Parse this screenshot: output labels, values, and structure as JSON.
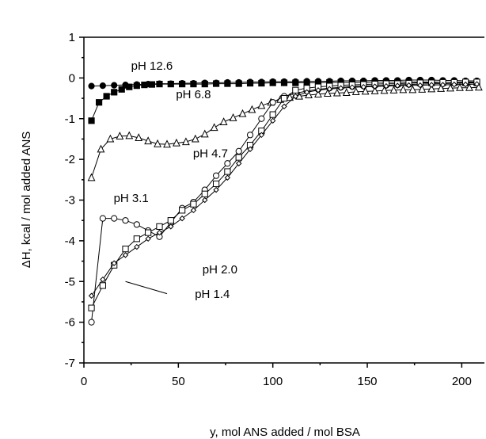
{
  "chart_data": {
    "type": "scatter",
    "xlabel": "y, mol ANS added / mol BSA",
    "ylabel": "ΔH, kcal / mol added ANS",
    "xlim": [
      0,
      212
    ],
    "ylim": [
      -7,
      1
    ],
    "xticks": [
      0,
      50,
      100,
      150,
      200
    ],
    "yticks": [
      1,
      0,
      -1,
      -2,
      -3,
      -4,
      -5,
      -6,
      -7
    ],
    "grid": false,
    "legend": "none",
    "series": [
      {
        "name": "pH 12.6",
        "marker": "filled-circle",
        "x": [
          4,
          10,
          16,
          22,
          28,
          34,
          40,
          46,
          52,
          58,
          64,
          70,
          76,
          82,
          88,
          94,
          100,
          106,
          112,
          118,
          124,
          130,
          136,
          142,
          148,
          154,
          160,
          166,
          172,
          178,
          184,
          190,
          196,
          202,
          208
        ],
        "y": [
          -0.2,
          -0.19,
          -0.18,
          -0.17,
          -0.16,
          -0.15,
          -0.14,
          -0.14,
          -0.13,
          -0.13,
          -0.12,
          -0.12,
          -0.11,
          -0.11,
          -0.1,
          -0.1,
          -0.09,
          -0.09,
          -0.09,
          -0.08,
          -0.08,
          -0.08,
          -0.07,
          -0.07,
          -0.07,
          -0.06,
          -0.06,
          -0.06,
          -0.05,
          -0.05,
          -0.05,
          -0.06,
          -0.06,
          -0.07,
          -0.07
        ]
      },
      {
        "name": "pH 6.8",
        "marker": "filled-square",
        "x": [
          4,
          8,
          12,
          16,
          20,
          24,
          28,
          32,
          36,
          40,
          46,
          52,
          58,
          64,
          70,
          76,
          82,
          88,
          94,
          100,
          106,
          112,
          118,
          124,
          130,
          136,
          142,
          148,
          154,
          160,
          166,
          172,
          178,
          184,
          190,
          196,
          202,
          208
        ],
        "y": [
          -1.05,
          -0.6,
          -0.45,
          -0.35,
          -0.28,
          -0.22,
          -0.19,
          -0.17,
          -0.16,
          -0.15,
          -0.15,
          -0.15,
          -0.15,
          -0.15,
          -0.14,
          -0.14,
          -0.14,
          -0.13,
          -0.13,
          -0.12,
          -0.12,
          -0.12,
          -0.12,
          -0.12,
          -0.11,
          -0.11,
          -0.11,
          -0.11,
          -0.1,
          -0.1,
          -0.1,
          -0.1,
          -0.1,
          -0.1,
          -0.11,
          -0.11,
          -0.12,
          -0.12
        ]
      },
      {
        "name": "pH 4.7",
        "marker": "open-triangle",
        "x": [
          4,
          9,
          14,
          19,
          24,
          29,
          34,
          39,
          44,
          49,
          54,
          59,
          64,
          69,
          74,
          79,
          84,
          89,
          94,
          99,
          104,
          109,
          114,
          119,
          124,
          129,
          134,
          139,
          144,
          149,
          154,
          159,
          164,
          169,
          174,
          179,
          184,
          189,
          194,
          199,
          204,
          209
        ],
        "y": [
          -2.45,
          -1.75,
          -1.5,
          -1.43,
          -1.42,
          -1.47,
          -1.55,
          -1.62,
          -1.63,
          -1.6,
          -1.57,
          -1.5,
          -1.38,
          -1.22,
          -1.08,
          -0.98,
          -0.88,
          -0.78,
          -0.68,
          -0.6,
          -0.53,
          -0.48,
          -0.45,
          -0.42,
          -0.4,
          -0.38,
          -0.37,
          -0.36,
          -0.34,
          -0.33,
          -0.32,
          -0.31,
          -0.3,
          -0.29,
          -0.29,
          -0.28,
          -0.27,
          -0.26,
          -0.25,
          -0.24,
          -0.24,
          -0.23
        ]
      },
      {
        "name": "pH 3.1",
        "marker": "open-circle",
        "x": [
          4,
          10,
          16,
          22,
          28,
          34,
          40,
          46,
          52,
          58,
          64,
          70,
          76,
          82,
          88,
          94,
          100,
          106,
          112,
          118,
          124,
          130,
          136,
          142,
          148,
          154,
          160,
          166,
          172,
          178,
          184,
          190,
          196,
          202,
          208
        ],
        "y": [
          -6.0,
          -3.45,
          -3.45,
          -3.5,
          -3.6,
          -3.75,
          -3.9,
          -3.55,
          -3.2,
          -3.05,
          -2.75,
          -2.4,
          -2.1,
          -1.8,
          -1.4,
          -1.0,
          -0.6,
          -0.45,
          -0.38,
          -0.32,
          -0.28,
          -0.25,
          -0.23,
          -0.21,
          -0.2,
          -0.19,
          -0.18,
          -0.17,
          -0.16,
          -0.15,
          -0.14,
          -0.14,
          -0.13,
          -0.13,
          -0.12
        ]
      },
      {
        "name": "pH 2.0",
        "marker": "open-square",
        "x": [
          4,
          10,
          16,
          22,
          28,
          34,
          40,
          46,
          52,
          58,
          64,
          70,
          76,
          82,
          88,
          94,
          100,
          106,
          112,
          118,
          124,
          130,
          136,
          142,
          148,
          154,
          160,
          166,
          172,
          178,
          184,
          190,
          196,
          202,
          208
        ],
        "y": [
          -5.65,
          -5.1,
          -4.6,
          -4.2,
          -3.95,
          -3.8,
          -3.65,
          -3.5,
          -3.25,
          -3.1,
          -2.85,
          -2.6,
          -2.3,
          -1.95,
          -1.65,
          -1.3,
          -0.9,
          -0.5,
          -0.3,
          -0.25,
          -0.22,
          -0.2,
          -0.18,
          -0.17,
          -0.16,
          -0.15,
          -0.14,
          -0.14,
          -0.13,
          -0.12,
          -0.12,
          -0.11,
          -0.11,
          -0.1,
          -0.1
        ]
      },
      {
        "name": "pH 1.4",
        "marker": "open-diamond",
        "x": [
          4,
          10,
          16,
          22,
          28,
          34,
          40,
          46,
          52,
          58,
          64,
          70,
          76,
          82,
          88,
          94,
          100,
          106,
          112,
          118,
          124,
          130,
          136,
          142,
          148,
          154,
          160,
          166,
          172,
          178,
          184,
          190,
          196,
          202,
          208
        ],
        "y": [
          -5.35,
          -4.95,
          -4.55,
          -4.35,
          -4.15,
          -3.95,
          -3.8,
          -3.65,
          -3.45,
          -3.25,
          -3.0,
          -2.75,
          -2.45,
          -2.1,
          -1.75,
          -1.4,
          -1.05,
          -0.7,
          -0.45,
          -0.35,
          -0.3,
          -0.27,
          -0.25,
          -0.23,
          -0.22,
          -0.21,
          -0.2,
          -0.19,
          -0.18,
          -0.18,
          -0.17,
          -0.17,
          -0.16,
          -0.16,
          -0.15
        ]
      }
    ],
    "annotations": [
      {
        "text": "pH 12.6",
        "x": 36,
        "y": 0.2,
        "anchor": "middle"
      },
      {
        "text": "pH 6.8",
        "x": 58,
        "y": -0.5,
        "anchor": "middle"
      },
      {
        "text": "pH 4.7",
        "x": 67,
        "y": -1.95,
        "anchor": "middle"
      },
      {
        "text": "pH 3.1",
        "x": 25,
        "y": -3.05,
        "anchor": "middle"
      },
      {
        "text": "pH 2.0",
        "x": 72,
        "y": -4.8,
        "anchor": "middle"
      },
      {
        "text": "pH 1.4",
        "x": 68,
        "y": -5.4,
        "anchor": "middle"
      }
    ],
    "leader_lines": [
      {
        "from": [
          22,
          -5.0
        ],
        "to": [
          44,
          -5.3
        ]
      }
    ]
  }
}
